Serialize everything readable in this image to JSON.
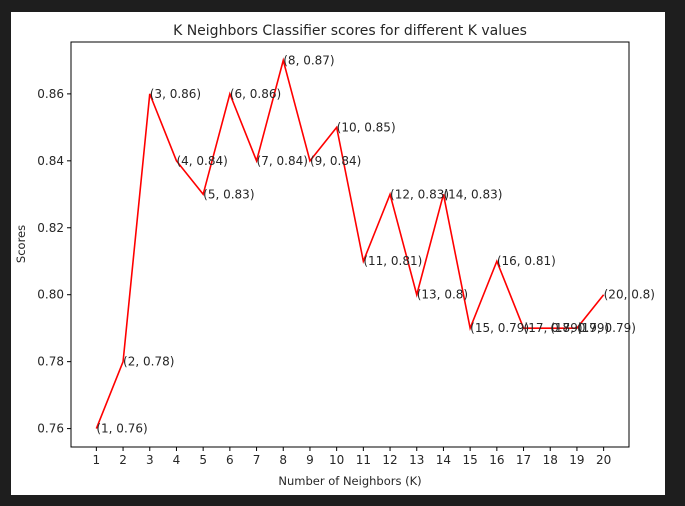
{
  "chart_data": {
    "type": "line",
    "title": "K Neighbors Classifier scores for different K values",
    "xlabel": "Number of Neighbors (K)",
    "ylabel": "Scores",
    "x": [
      1,
      2,
      3,
      4,
      5,
      6,
      7,
      8,
      9,
      10,
      11,
      12,
      13,
      14,
      15,
      16,
      17,
      18,
      19,
      20
    ],
    "series": [
      {
        "values": [
          0.76,
          0.78,
          0.86,
          0.84,
          0.83,
          0.86,
          0.84,
          0.87,
          0.84,
          0.85,
          0.81,
          0.83,
          0.8,
          0.83,
          0.79,
          0.81,
          0.79,
          0.79,
          0.79,
          0.8
        ],
        "color": "#ff0000"
      }
    ],
    "point_labels": [
      "(1, 0.76)",
      "(2, 0.78)",
      "(3, 0.86)",
      "(4, 0.84)",
      "(5, 0.83)",
      "(6, 0.86)",
      "(7, 0.84)",
      "(8, 0.87)",
      "(9, 0.84)",
      "(10, 0.85)",
      "(11, 0.81)",
      "(12, 0.83)",
      "(13, 0.8)",
      "(14, 0.83)",
      "(15, 0.79)",
      "(16, 0.81)",
      "(17, 0.79)",
      "(18, 0.79)",
      "(19, 0.79)",
      "(20, 0.8)"
    ],
    "xticks": [
      "1",
      "2",
      "3",
      "4",
      "5",
      "6",
      "7",
      "8",
      "9",
      "10",
      "11",
      "12",
      "13",
      "14",
      "15",
      "16",
      "17",
      "18",
      "19",
      "20"
    ],
    "yticks": [
      0.76,
      0.78,
      0.8,
      0.82,
      0.84,
      0.86
    ],
    "ytick_labels": [
      "0.76",
      "0.78",
      "0.80",
      "0.82",
      "0.84",
      "0.86"
    ],
    "xlim": [
      0.05,
      20.95
    ],
    "ylim": [
      0.7545,
      0.8755
    ],
    "grid": false,
    "legend": "none",
    "line_color": "#ff0000"
  }
}
